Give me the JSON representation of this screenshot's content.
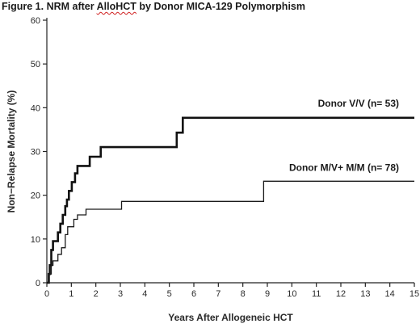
{
  "figure": {
    "title_prefix": "Figure 1. NRM after ",
    "title_flag": "AlloHCT",
    "title_suffix": " by Donor MICA-129 Polymorphism"
  },
  "chart_data": {
    "type": "line",
    "title": "Figure 1. NRM after AlloHCT by Donor MICA-129 Polymorphism",
    "xlabel": "Years After Allogeneic HCT",
    "ylabel": "Non−Relapse Mortality (%)",
    "xlim": [
      0,
      15
    ],
    "ylim": [
      0,
      60
    ],
    "x_ticks": [
      0,
      1,
      2,
      3,
      4,
      5,
      6,
      7,
      8,
      9,
      10,
      11,
      12,
      13,
      14,
      15
    ],
    "y_ticks": [
      0,
      10,
      20,
      30,
      40,
      50,
      60
    ],
    "grid": false,
    "step": true,
    "series": [
      {
        "name": "Donor  V/V  (n= 53)",
        "color": "#111111",
        "stroke_weight": "heavy",
        "points": [
          [
            0,
            0
          ],
          [
            0.08,
            2
          ],
          [
            0.12,
            4
          ],
          [
            0.18,
            7.5
          ],
          [
            0.25,
            9.5
          ],
          [
            0.45,
            11.5
          ],
          [
            0.55,
            13.5
          ],
          [
            0.65,
            15.5
          ],
          [
            0.75,
            17.5
          ],
          [
            0.82,
            19
          ],
          [
            0.9,
            21
          ],
          [
            1.02,
            23
          ],
          [
            1.15,
            25
          ],
          [
            1.25,
            26.7
          ],
          [
            1.75,
            28.8
          ],
          [
            2.2,
            31
          ],
          [
            5.3,
            34.3
          ],
          [
            5.55,
            37.7
          ],
          [
            15,
            37.7
          ]
        ]
      },
      {
        "name": "Donor  M/V+ M/M  (n= 78)",
        "color": "#1a1a1a",
        "stroke_weight": "light",
        "points": [
          [
            0,
            0
          ],
          [
            0.1,
            2
          ],
          [
            0.18,
            4
          ],
          [
            0.25,
            5
          ],
          [
            0.45,
            6.5
          ],
          [
            0.6,
            8
          ],
          [
            0.75,
            11
          ],
          [
            0.85,
            12.8
          ],
          [
            1.1,
            14.5
          ],
          [
            1.25,
            15.5
          ],
          [
            1.6,
            16.8
          ],
          [
            3.05,
            18.6
          ],
          [
            8.85,
            23.2
          ],
          [
            15,
            23.2
          ]
        ]
      }
    ]
  }
}
